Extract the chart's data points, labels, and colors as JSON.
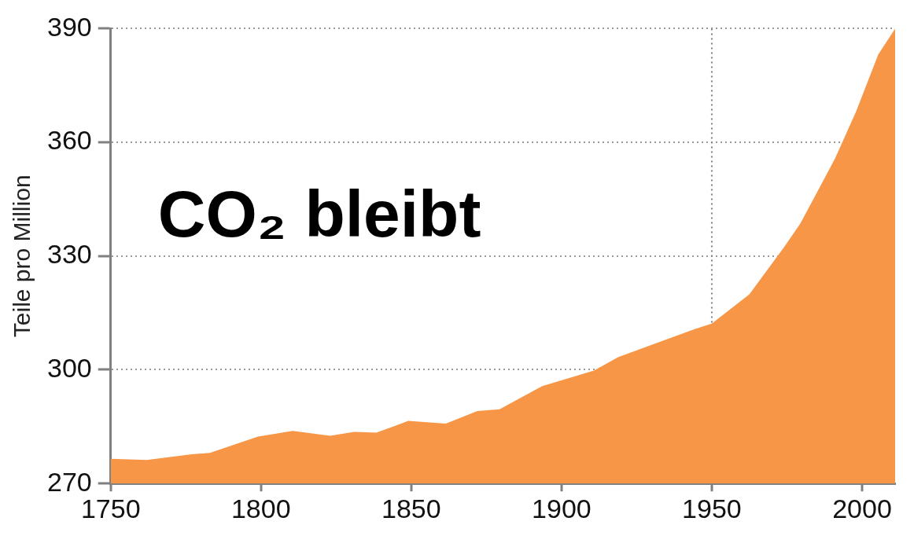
{
  "chart_data": {
    "type": "area",
    "ylabel": "Teile pro Million",
    "annotations": [
      "CO₂ bleibt"
    ],
    "x": [
      1750,
      1762,
      1777,
      1783,
      1799,
      1810.6,
      1823,
      1831,
      1838.4,
      1849,
      1861.5,
      1872,
      1879.4,
      1893.6,
      1910.8,
      1918.8,
      1930,
      1944.5,
      1950,
      1962.5,
      1974,
      1979.4,
      1984,
      1991,
      1998,
      2005.4,
      2011
    ],
    "series": [
      {
        "color": "#f79646",
        "values": [
          276.5,
          276.2,
          277.7,
          278.1,
          282.4,
          283.9,
          282.6,
          283.6,
          283.4,
          286.5,
          285.8,
          289.1,
          289.6,
          295.7,
          299.8,
          303.3,
          306.6,
          310.8,
          312.2,
          319.9,
          332.3,
          338.5,
          345.3,
          355.7,
          368.1,
          383.2,
          390
        ]
      }
    ],
    "xlim": [
      1750,
      2011
    ],
    "xticks": [
      1750,
      1800,
      1850,
      1900,
      1950,
      2000
    ],
    "ylim": [
      270,
      390
    ],
    "yticks": [
      270,
      300,
      330,
      360,
      390
    ],
    "grid": "y",
    "legend": false,
    "marker": "none",
    "ref_lines": [
      {
        "axis": "x",
        "value": 1950,
        "label": null,
        "line_style": "dotted",
        "color": "#808080"
      }
    ]
  }
}
